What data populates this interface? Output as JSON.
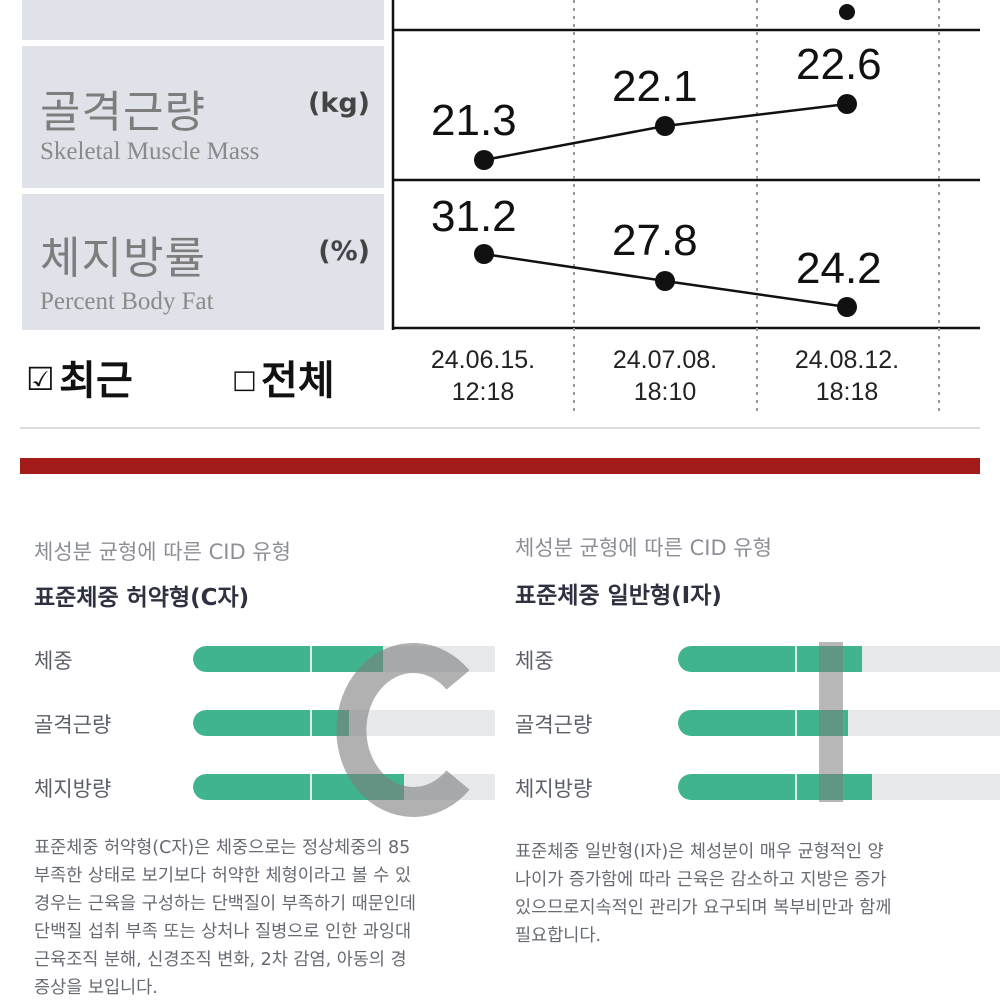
{
  "report": {
    "rows": [
      {
        "title_ko": "골격근량",
        "title_en": "Skeletal Muscle Mass",
        "unit": "(kg)",
        "values": [
          "21.3",
          "22.1",
          "22.6"
        ]
      },
      {
        "title_ko": "체지방률",
        "title_en": "Percent Body Fat",
        "unit": "(%)",
        "values": [
          "31.2",
          "27.8",
          "24.2"
        ]
      }
    ],
    "view_recent": {
      "mark": "☑",
      "label": "최근"
    },
    "view_all": {
      "mark": "□",
      "label": "전체"
    },
    "dates": [
      {
        "date": "24.06.15.",
        "time": "12:18"
      },
      {
        "date": "24.07.08.",
        "time": "18:10"
      },
      {
        "date": "24.08.12.",
        "time": "18:18"
      }
    ],
    "colors": {
      "label_bg": "#dfe2e8",
      "divider": "#a31b1b"
    }
  },
  "cards": [
    {
      "subtitle": "체성분 균형에 따른 CID 유형",
      "title": "표준체중 허약형(C자)",
      "letter": "C",
      "rows": [
        {
          "label": "체중",
          "fill": 0.56
        },
        {
          "label": "골격근량",
          "fill": 0.46
        },
        {
          "label": "체지방량",
          "fill": 0.62
        }
      ],
      "description": [
        "표준체중 허약형(C자)은 체중으로는 정상체중의 85",
        "부족한 상태로 보기보다 허약한 체형이라고 볼 수 있",
        "경우는 근육을 구성하는 단백질이 부족하기 때문인데",
        "단백질 섭취 부족 또는 상처나 질병으로 인한 과잉대",
        "근육조직 분해, 신경조직 변화, 2차 감염, 아동의 경",
        "증상을 보입니다."
      ]
    },
    {
      "subtitle": "체성분 균형에 따른 CID 유형",
      "title": "표준체중 일반형(I자)",
      "letter": "I",
      "rows": [
        {
          "label": "체중",
          "fill": 0.54
        },
        {
          "label": "골격근량",
          "fill": 0.5
        },
        {
          "label": "체지방량",
          "fill": 0.57
        }
      ],
      "description": [
        "표준체중 일반형(I자)은 체성분이 매우 균형적인 양",
        "나이가 증가함에 따라 근육은 감소하고 지방은 증가",
        "있으므로지속적인 관리가 요구되며 복부비만과 함께",
        "필요합니다."
      ]
    }
  ]
}
